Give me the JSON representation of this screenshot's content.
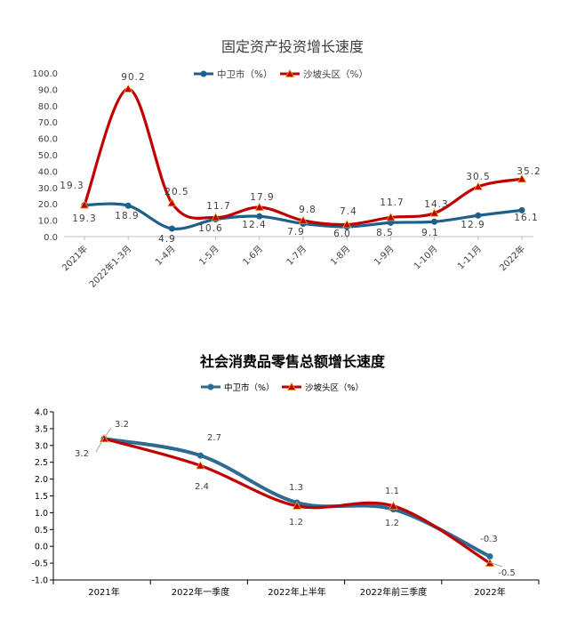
{
  "chart_data": [
    {
      "type": "line",
      "title": "固定资产投资增长速度",
      "categories": [
        "2021年",
        "2022年1-3月",
        "1-4月",
        "1-5月",
        "1-6月",
        "1-7月",
        "1-8月",
        "1-9月",
        "1-10月",
        "1-11月",
        "2022年"
      ],
      "yticks": [
        "0.0",
        "10.0",
        "20.0",
        "30.0",
        "40.0",
        "50.0",
        "60.0",
        "70.0",
        "80.0",
        "90.0",
        "100.0"
      ],
      "ylim": [
        0,
        100
      ],
      "legend_position": "top",
      "series": [
        {
          "name": "中卫市（%）",
          "color": "#1f5f8b",
          "values": [
            19.3,
            18.9,
            4.9,
            10.6,
            12.4,
            7.9,
            6.0,
            8.5,
            9.1,
            12.9,
            16.1
          ],
          "labels": [
            "19.3",
            "18.9",
            "4.9",
            "10.6",
            "12.4",
            "7.9",
            "6.0",
            "8.5",
            "9.1",
            "12.9",
            "16.1"
          ]
        },
        {
          "name": "沙坡头区（%）",
          "color": "#c00000",
          "values": [
            19.3,
            90.2,
            20.5,
            11.7,
            17.9,
            9.8,
            7.4,
            11.7,
            14.3,
            30.5,
            35.2
          ],
          "labels": [
            "19.3",
            "90.2",
            "20.5",
            "11.7",
            "17.9",
            "9.8",
            "7.4",
            "11.7",
            "14.3",
            "30.5",
            "35.2"
          ]
        }
      ]
    },
    {
      "type": "line",
      "title": "社会消费品零售总额增长速度",
      "categories": [
        "2021年",
        "2022年一季度",
        "2022年上半年",
        "2022年前三季度",
        "2022年"
      ],
      "yticks": [
        "-1.0",
        "-0.5",
        "0.0",
        "0.5",
        "1.0",
        "1.5",
        "2.0",
        "2.5",
        "3.0",
        "3.5",
        "4.0"
      ],
      "ylim": [
        -1.0,
        4.0
      ],
      "legend_position": "top",
      "series": [
        {
          "name": "中卫市（%）",
          "color": "#2e6b93",
          "values": [
            3.2,
            2.7,
            1.3,
            1.1,
            -0.3
          ],
          "labels": [
            "3.2",
            "2.7",
            "1.3",
            "1.1",
            "-0.3"
          ]
        },
        {
          "name": "沙坡头区（%）",
          "color": "#c00000",
          "values": [
            3.2,
            2.4,
            1.2,
            1.2,
            -0.5
          ],
          "labels": [
            "3.2",
            "2.4",
            "1.2",
            "1.2",
            "-0.5"
          ]
        }
      ]
    }
  ]
}
